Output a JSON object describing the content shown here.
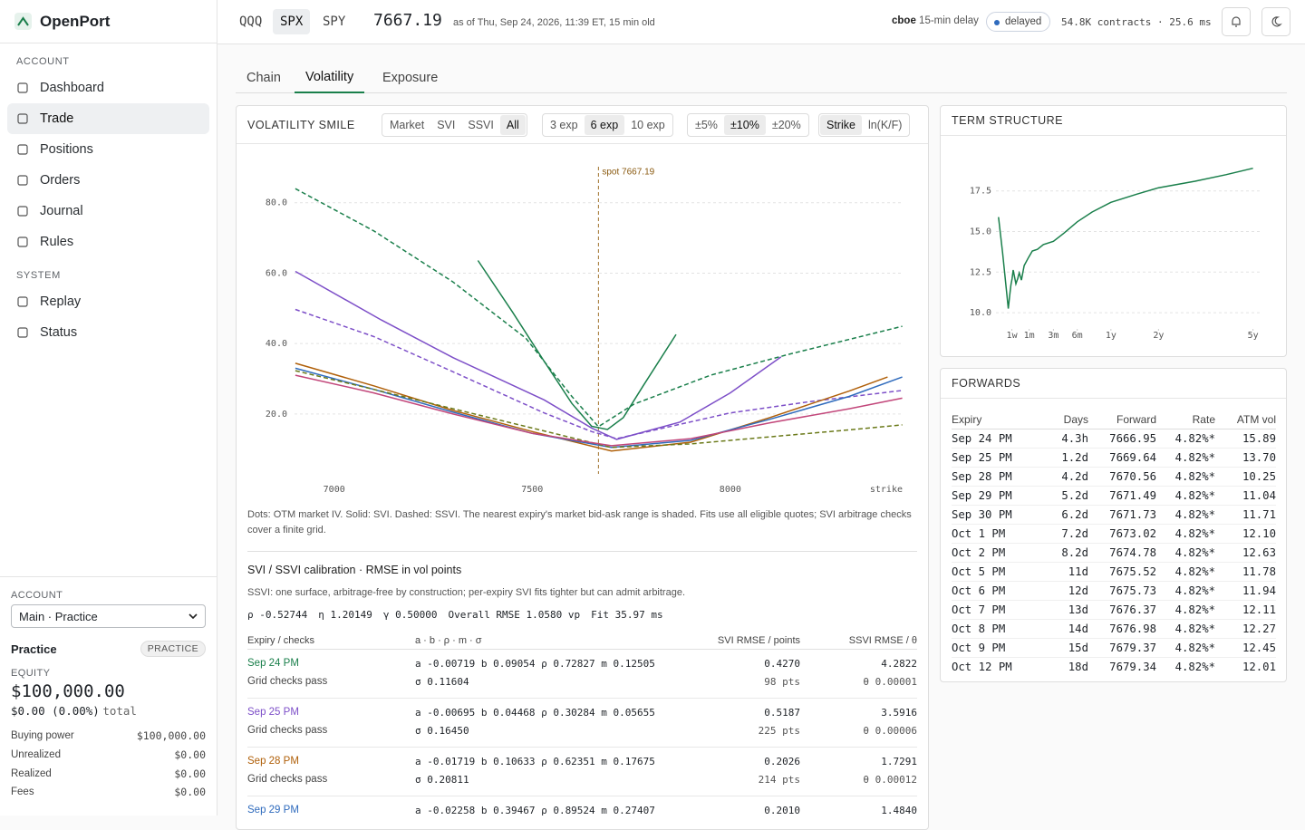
{
  "sidebar": {
    "brand": "OpenPort",
    "sections": [
      {
        "title": "ACCOUNT",
        "items": [
          "Dashboard",
          "Trade",
          "Positions",
          "Orders",
          "Journal",
          "Rules"
        ]
      },
      {
        "title": "SYSTEM",
        "items": [
          "Replay",
          "Status"
        ]
      }
    ],
    "active": "Trade",
    "account": {
      "label": "ACCOUNT",
      "selected": "Main · Practice",
      "name": "Practice",
      "badge": "PRACTICE",
      "equity_label": "EQUITY",
      "equity": "$100,000.00",
      "change": "$0.00 (0.00%)",
      "change_suffix": "total",
      "rows": [
        [
          "Buying power",
          "$100,000.00"
        ],
        [
          "Unrealized",
          "$0.00"
        ],
        [
          "Realized",
          "$0.00"
        ],
        [
          "Fees",
          "$0.00"
        ]
      ]
    }
  },
  "topbar": {
    "tickers": [
      "QQQ",
      "SPX",
      "SPY"
    ],
    "active": "SPX",
    "price": "7667.19",
    "as_of": "as of Thu, Sep 24, 2026, 11:39 ET, 15 min old",
    "source": "cboe",
    "delay": "15-min delay",
    "status": "delayed",
    "stats": "54.8K contracts · 25.6 ms"
  },
  "tabs": {
    "items": [
      "Chain",
      "Volatility",
      "Exposure"
    ],
    "active": "Volatility"
  },
  "smile_controls": [
    {
      "items": [
        "Market",
        "SVI",
        "SSVI",
        "All"
      ],
      "active": "All"
    },
    {
      "items": [
        "3 exp",
        "6 exp",
        "10 exp"
      ],
      "active": "6 exp"
    },
    {
      "items": [
        "±5%",
        "±10%",
        "±20%"
      ],
      "active": "±10%"
    },
    {
      "items": [
        "Strike",
        "ln(K/F)"
      ],
      "active": "Strike"
    }
  ],
  "chart_data": [
    {
      "type": "line",
      "title": "VOLATILITY SMILE",
      "xlabel": "strike",
      "xlim": [
        6900,
        8435
      ],
      "ylim": [
        3.5,
        91
      ],
      "xticks": [
        7000,
        7500,
        8000
      ],
      "yticks": [
        {
          "value": 20,
          "label": "20.0"
        },
        {
          "value": 40,
          "label": "40.0"
        },
        {
          "value": 60,
          "label": "60.0"
        },
        {
          "value": 80,
          "label": "80.0"
        }
      ],
      "grid": true,
      "annotations": [
        {
          "x": 7667.19,
          "text": "spot 7667.19"
        }
      ],
      "series": [
        {
          "color": "#1a7f4b",
          "dash": false,
          "x": [
            7363,
            7450,
            7530,
            7600,
            7650,
            7690,
            7730,
            7780,
            7863
          ],
          "values": [
            63.6,
            49,
            35,
            23,
            16.5,
            15.6,
            19,
            28,
            42.6
          ]
        },
        {
          "color": "#1a7f4b",
          "dash": true,
          "x": [
            6902,
            7100,
            7300,
            7484,
            7600,
            7667,
            7757,
            7950,
            8146,
            8434
          ],
          "values": [
            84,
            72,
            57.5,
            41.5,
            25,
            16.4,
            22.8,
            31,
            36.9,
            44.9
          ]
        },
        {
          "color": "#7d4fc8",
          "dash": false,
          "x": [
            6902,
            7119,
            7300,
            7530,
            7650,
            7713,
            7873,
            8000,
            8128
          ],
          "values": [
            60.5,
            46.7,
            36,
            24,
            16,
            12.8,
            17.7,
            26,
            36.2
          ]
        },
        {
          "color": "#7d4fc8",
          "dash": true,
          "x": [
            6902,
            7100,
            7300,
            7530,
            7650,
            7713,
            8000,
            8200,
            8434
          ],
          "values": [
            49.7,
            42,
            32,
            20.3,
            15,
            13,
            20.3,
            23.5,
            26.7
          ]
        },
        {
          "color": "#b0600a",
          "dash": false,
          "x": [
            6902,
            7100,
            7300,
            7500,
            7700,
            7900,
            8100,
            8300,
            8397
          ],
          "values": [
            34.4,
            28,
            21,
            15,
            9.5,
            12,
            19,
            26.5,
            30.5
          ]
        },
        {
          "color": "#2f6bbd",
          "dash": false,
          "x": [
            6902,
            7100,
            7300,
            7500,
            7700,
            7900,
            8100,
            8300,
            8434
          ],
          "values": [
            33,
            27,
            20.5,
            14.5,
            10.5,
            12.5,
            18.5,
            25,
            30.5
          ]
        },
        {
          "color": "#6b7a1a",
          "dash": true,
          "x": [
            6902,
            7100,
            7300,
            7500,
            7700,
            7900,
            8100,
            8300,
            8434
          ],
          "values": [
            32.3,
            27,
            21.5,
            16,
            10.5,
            11.5,
            13.5,
            15.5,
            16.9
          ]
        },
        {
          "color": "#c2467a",
          "dash": false,
          "x": [
            6902,
            7100,
            7300,
            7500,
            7700,
            7900,
            8100,
            8300,
            8434
          ],
          "values": [
            31,
            26,
            20,
            14.5,
            11,
            13,
            17.5,
            21.5,
            24.5
          ]
        }
      ]
    },
    {
      "type": "line",
      "title": "TERM STRUCTURE",
      "xscale": "sqrt",
      "xlim": [
        0,
        5.3
      ],
      "ylim": [
        9,
        20.5
      ],
      "color": "#1a7f4b",
      "grid": true,
      "xticks": [
        {
          "value": 0.0192,
          "label": "1w"
        },
        {
          "value": 0.0833,
          "label": "1m"
        },
        {
          "value": 0.25,
          "label": "3m"
        },
        {
          "value": 0.5,
          "label": "6m"
        },
        {
          "value": 1,
          "label": "1y"
        },
        {
          "value": 2,
          "label": "2y"
        },
        {
          "value": 5,
          "label": "5y"
        }
      ],
      "yticks": [
        {
          "value": 10,
          "label": "10.0"
        },
        12.5,
        {
          "value": 15,
          "label": "15.0"
        },
        17.5
      ],
      "x": [
        0.0005,
        0.0033,
        0.0115,
        0.0142,
        0.017,
        0.0197,
        0.0225,
        0.03,
        0.033,
        0.036,
        0.038,
        0.041,
        0.049,
        0.06,
        0.08,
        0.1,
        0.13,
        0.17,
        0.25,
        0.35,
        0.5,
        0.7,
        1,
        1.5,
        2,
        3,
        4,
        5
      ],
      "values": [
        15.89,
        13.7,
        10.25,
        11.04,
        11.71,
        12.1,
        12.63,
        11.78,
        11.94,
        12.11,
        12.27,
        12.45,
        12.01,
        12.9,
        13.4,
        13.8,
        13.9,
        14.2,
        14.4,
        14.9,
        15.6,
        16.2,
        16.8,
        17.3,
        17.7,
        18.1,
        18.5,
        18.9
      ]
    }
  ],
  "smile_note": "Dots: OTM market IV. Solid: SVI. Dashed: SSVI. The nearest expiry's market bid-ask range is shaded. Fits use all eligible quotes; SVI arbitrage checks cover a finite grid.",
  "calibration": {
    "title": "SVI / SSVI calibration · RMSE in vol points",
    "description": "SSVI: one surface, arbitrage-free by construction; per-expiry SVI fits tighter but can admit arbitrage.",
    "params": [
      "ρ -0.52744",
      "η 1.20149",
      "γ 0.50000",
      "Overall RMSE 1.0580 vp",
      "Fit 35.97 ms"
    ],
    "headers": [
      "Expiry / checks",
      "a · b · ρ · m · σ",
      "SVI RMSE / points",
      "SSVI RMSE / θ"
    ],
    "rows": [
      {
        "expiry": "Sep 24 PM",
        "color": "#1a7f4b",
        "check": "Grid checks pass",
        "params": [
          "a -0.00719 b 0.09054 ρ 0.72827 m 0.12505",
          "σ 0.11604"
        ],
        "svi_rmse": "0.4270",
        "points": "98 pts",
        "ssvi_rmse": "4.2822",
        "theta": "θ 0.00001"
      },
      {
        "expiry": "Sep 25 PM",
        "color": "#7d4fc8",
        "check": "Grid checks pass",
        "params": [
          "a -0.00695 b 0.04468 ρ 0.30284 m 0.05655",
          "σ 0.16450"
        ],
        "svi_rmse": "0.5187",
        "points": "225 pts",
        "ssvi_rmse": "3.5916",
        "theta": "θ 0.00006"
      },
      {
        "expiry": "Sep 28 PM",
        "color": "#b0600a",
        "check": "Grid checks pass",
        "params": [
          "a -0.01719 b 0.10633 ρ 0.62351 m 0.17675",
          "σ 0.20811"
        ],
        "svi_rmse": "0.2026",
        "points": "214 pts",
        "ssvi_rmse": "1.7291",
        "theta": "θ 0.00012"
      },
      {
        "expiry": "Sep 29 PM",
        "color": "#2f6bbd",
        "params": [
          "a -0.02258 b 0.39467 ρ 0.89524 m 0.27407"
        ],
        "svi_rmse": "0.2010",
        "ssvi_rmse": "1.4840"
      }
    ]
  },
  "forwards": {
    "title": "FORWARDS",
    "headers": [
      "Expiry",
      "Days",
      "Forward",
      "Rate",
      "ATM vol"
    ],
    "rows": [
      [
        "Sep 24 PM",
        "4.3h",
        "7666.95",
        "4.82%*",
        "15.89"
      ],
      [
        "Sep 25 PM",
        "1.2d",
        "7669.64",
        "4.82%*",
        "13.70"
      ],
      [
        "Sep 28 PM",
        "4.2d",
        "7670.56",
        "4.82%*",
        "10.25"
      ],
      [
        "Sep 29 PM",
        "5.2d",
        "7671.49",
        "4.82%*",
        "11.04"
      ],
      [
        "Sep 30 PM",
        "6.2d",
        "7671.73",
        "4.82%*",
        "11.71"
      ],
      [
        "Oct 1 PM",
        "7.2d",
        "7673.02",
        "4.82%*",
        "12.10"
      ],
      [
        "Oct 2 PM",
        "8.2d",
        "7674.78",
        "4.82%*",
        "12.63"
      ],
      [
        "Oct 5 PM",
        "11d",
        "7675.52",
        "4.82%*",
        "11.78"
      ],
      [
        "Oct 6 PM",
        "12d",
        "7675.73",
        "4.82%*",
        "11.94"
      ],
      [
        "Oct 7 PM",
        "13d",
        "7676.37",
        "4.82%*",
        "12.11"
      ],
      [
        "Oct 8 PM",
        "14d",
        "7676.98",
        "4.82%*",
        "12.27"
      ],
      [
        "Oct 9 PM",
        "15d",
        "7679.37",
        "4.82%*",
        "12.45"
      ],
      [
        "Oct 12 PM",
        "18d",
        "7679.34",
        "4.82%*",
        "12.01"
      ]
    ]
  }
}
